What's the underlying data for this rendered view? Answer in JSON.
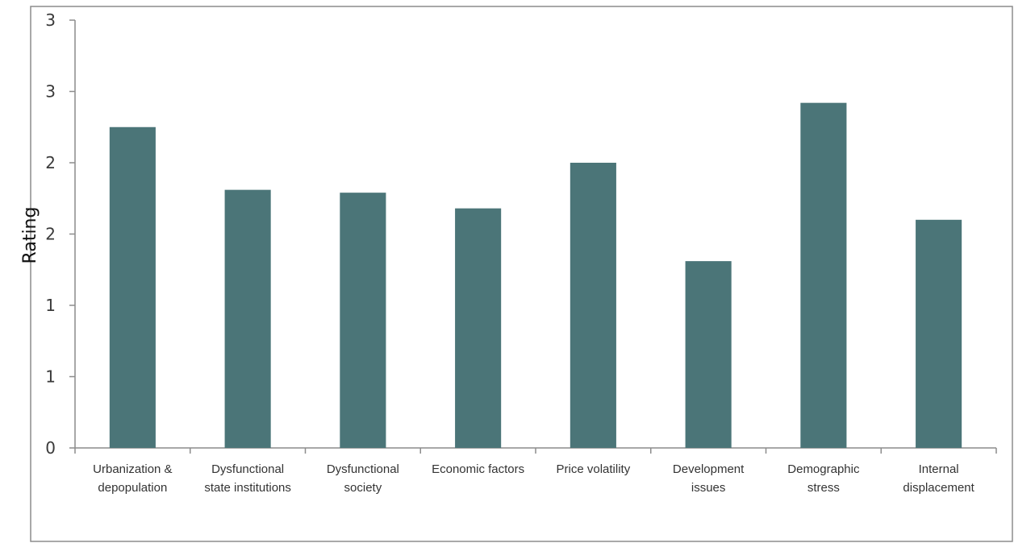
{
  "chart_data": {
    "type": "bar",
    "title": "",
    "xlabel": "",
    "ylabel": "Rating",
    "ylim": [
      0,
      3
    ],
    "yticks": [
      0,
      0.5,
      1,
      1.5,
      2,
      2.5,
      3
    ],
    "ytick_labels": [
      "0",
      "1",
      "1",
      "2",
      "2",
      "3",
      "3"
    ],
    "grid": false,
    "legend": "none",
    "bar_color": "#4b7578",
    "categories": [
      [
        "Urbanization &",
        "depopulation"
      ],
      [
        "Dysfunctional",
        "state institutions"
      ],
      [
        "Dysfunctional",
        "society"
      ],
      [
        "Economic factors"
      ],
      [
        "Price volatility"
      ],
      [
        "Development",
        "issues"
      ],
      [
        "Demographic",
        "stress"
      ],
      [
        "Internal",
        "displacement"
      ]
    ],
    "values": [
      2.25,
      1.81,
      1.79,
      1.68,
      2.0,
      1.31,
      2.42,
      1.6
    ]
  }
}
